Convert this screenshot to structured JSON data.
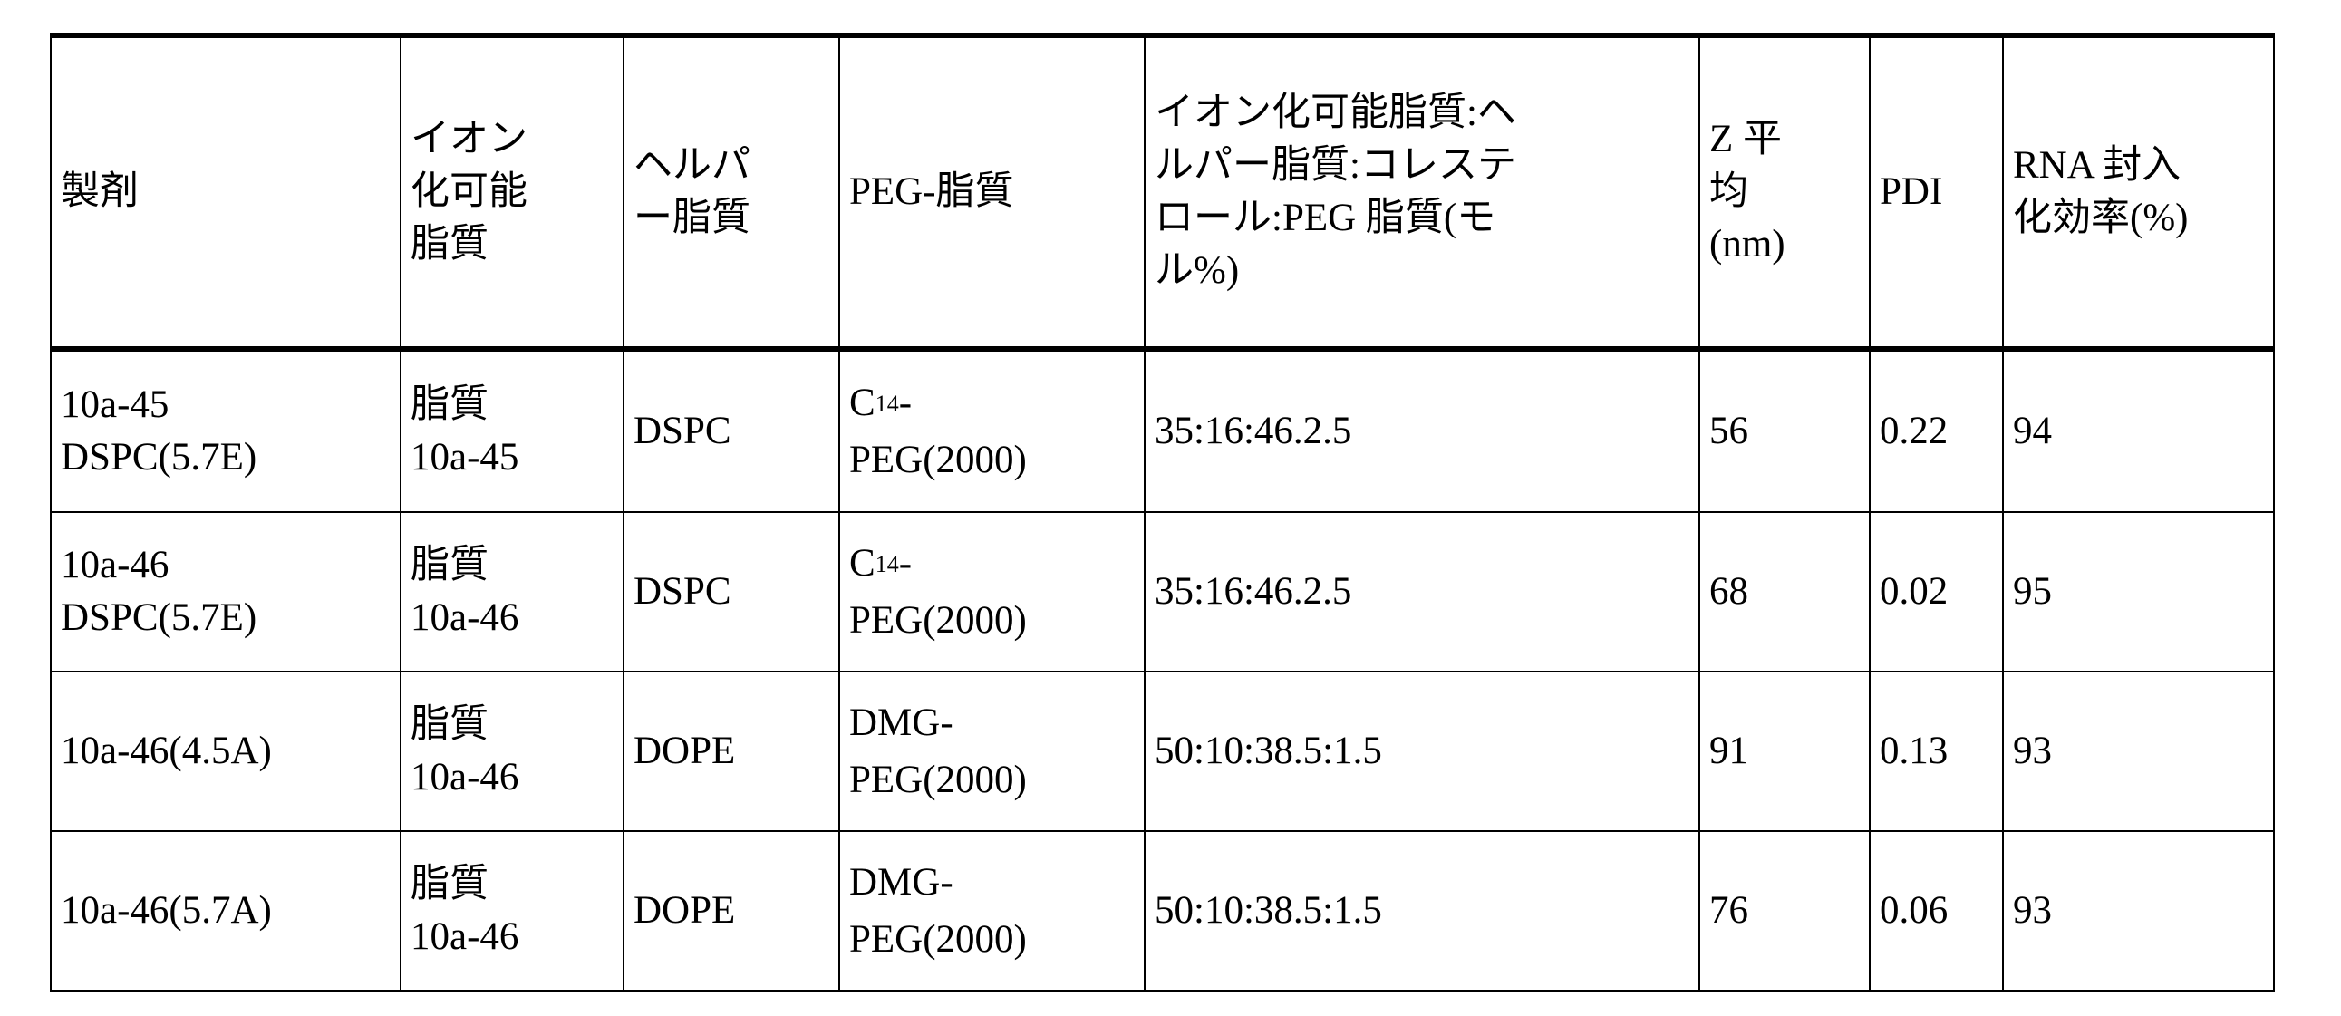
{
  "table": {
    "headers": [
      [
        "製剤"
      ],
      [
        "イオン",
        "化可能",
        "脂質"
      ],
      [
        "ヘルパ",
        "ー脂質"
      ],
      [
        "PEG-脂質"
      ],
      [
        "イオン化可能脂質:ヘ",
        "ルパー脂質:コレステ",
        "ロール:PEG 脂質(モ",
        "ル%)"
      ],
      [
        "Z 平",
        "均",
        "(nm)"
      ],
      [
        "PDI"
      ],
      [
        "RNA 封入",
        "化効率(%)"
      ]
    ],
    "rows": [
      {
        "formulation": [
          "10a-45",
          "DSPC(5.7E)"
        ],
        "ionizable": [
          "脂質",
          "10a-45"
        ],
        "helper": "DSPC",
        "peg_prefix": "C",
        "peg_sub": "14",
        "peg_suffix": "-",
        "peg_line2": "PEG(2000)",
        "ratio": "35:16:46.2.5",
        "z": "56",
        "pdi": "0.22",
        "eff": "94"
      },
      {
        "formulation": [
          "10a-46",
          "DSPC(5.7E)"
        ],
        "ionizable": [
          "脂質",
          "10a-46"
        ],
        "helper": "DSPC",
        "peg_prefix": "C",
        "peg_sub": "14",
        "peg_suffix": "-",
        "peg_line2": "PEG(2000)",
        "ratio": "35:16:46.2.5",
        "z": "68",
        "pdi": "0.02",
        "eff": "95"
      },
      {
        "formulation": [
          "10a-46(4.5A)"
        ],
        "ionizable": [
          "脂質",
          "10a-46"
        ],
        "helper": "DOPE",
        "peg_prefix": "DMG",
        "peg_sub": "",
        "peg_suffix": "-",
        "peg_line2": "PEG(2000)",
        "ratio": "50:10:38.5:1.5",
        "z": "91",
        "pdi": "0.13",
        "eff": "93"
      },
      {
        "formulation": [
          "10a-46(5.7A)"
        ],
        "ionizable": [
          "脂質",
          "10a-46"
        ],
        "helper": "DOPE",
        "peg_prefix": "DMG",
        "peg_sub": "",
        "peg_suffix": "-",
        "peg_line2": "PEG(2000)",
        "ratio": "50:10:38.5:1.5",
        "z": "76",
        "pdi": "0.06",
        "eff": "93"
      }
    ]
  }
}
